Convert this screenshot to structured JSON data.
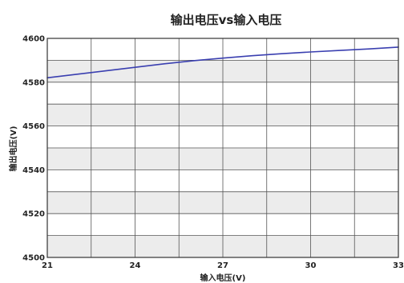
{
  "chart_data": {
    "type": "line",
    "title": "输出电压vs输入电压",
    "xlabel": "输入电压(V)",
    "ylabel": "输出电压(V)",
    "xlim": [
      21,
      33
    ],
    "ylim": [
      4500,
      4600
    ],
    "xticks": [
      21,
      24,
      27,
      30,
      33
    ],
    "yticks": [
      4500,
      4520,
      4540,
      4560,
      4580,
      4600
    ],
    "x_minor_gridlines": [
      22.5,
      25.5,
      28.5,
      31.5
    ],
    "y_minor_gridlines": [
      4510,
      4530,
      4550,
      4570,
      4590
    ],
    "grid": true,
    "legend": "none",
    "colors": {
      "line": "#3a3fb0",
      "band_light": "#ffffff",
      "band_shaded": "#ececec",
      "grid": "#555555",
      "frame": "#333333"
    },
    "series": [
      {
        "x": [
          21,
          22,
          23,
          24,
          25,
          26,
          27,
          28,
          29,
          30,
          31,
          32,
          33
        ],
        "values": [
          4582,
          4583.6,
          4585.2,
          4586.8,
          4588.4,
          4589.8,
          4591,
          4592.1,
          4593,
          4593.8,
          4594.5,
          4595.2,
          4596
        ]
      }
    ]
  }
}
